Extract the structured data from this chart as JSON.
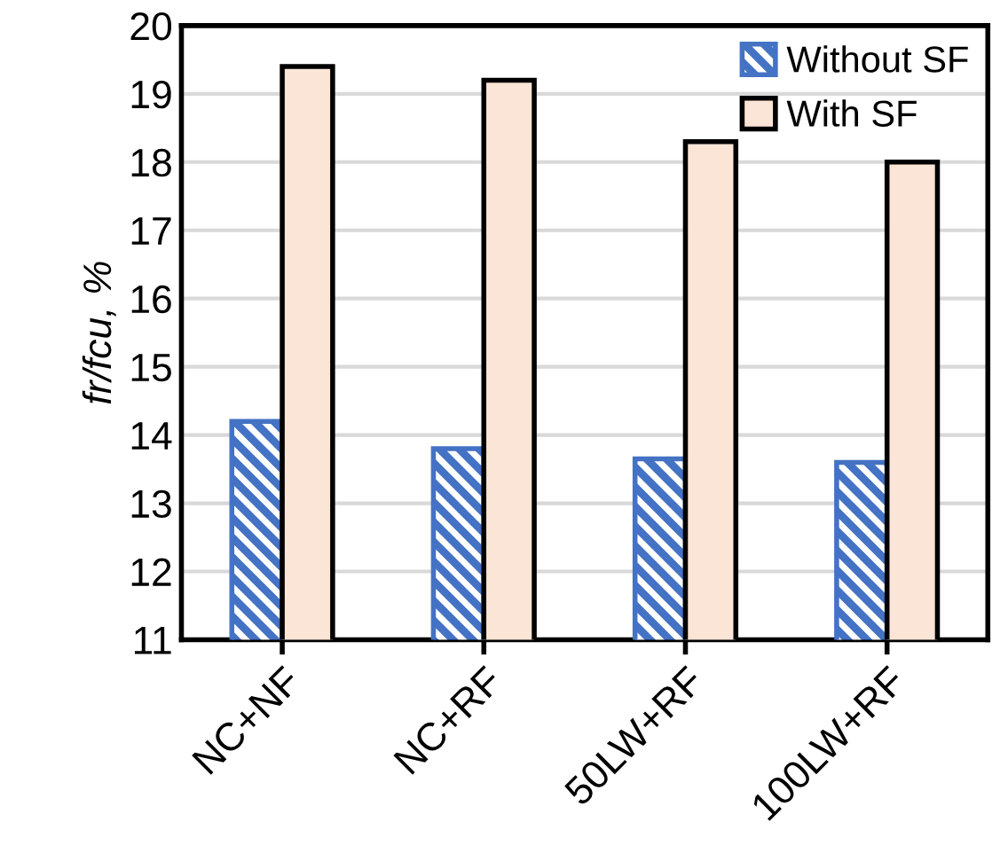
{
  "chart_data": {
    "type": "bar",
    "ylabel": "fr/fcu, %",
    "categories": [
      "NC+NF",
      "NC+RF",
      "50LW+RF",
      "100LW+RF"
    ],
    "series": [
      {
        "name": "Without SF",
        "color": "#4472c4",
        "values": [
          14.2,
          13.8,
          13.65,
          13.6
        ]
      },
      {
        "name": "With SF",
        "color": "#fbe5d6",
        "values": [
          19.4,
          19.2,
          18.3,
          18.0
        ]
      }
    ],
    "ylim": [
      11,
      20
    ],
    "yticks": [
      11,
      12,
      13,
      14,
      15,
      16,
      17,
      18,
      19,
      20
    ],
    "grid": "y",
    "legend": "top right"
  }
}
